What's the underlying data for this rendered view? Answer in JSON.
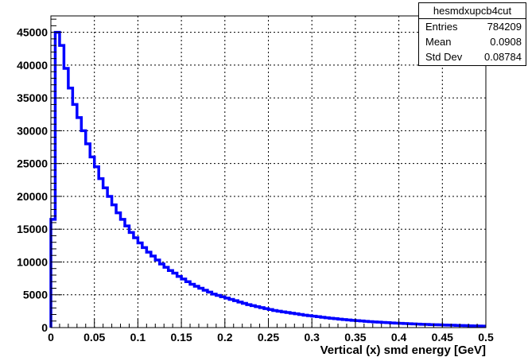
{
  "chart_data": {
    "type": "histogram",
    "xlabel": "Vertical (x) smd energy [GeV]",
    "ylabel": "",
    "xlim": [
      0,
      0.5
    ],
    "ylim": [
      0,
      47500
    ],
    "grid": true,
    "line_color": "#0000ff",
    "x_ticks": [
      "0",
      "0.05",
      "0.1",
      "0.15",
      "0.2",
      "0.25",
      "0.3",
      "0.35",
      "0.4",
      "0.45",
      "0.5"
    ],
    "y_ticks": [
      "0",
      "5000",
      "10000",
      "15000",
      "20000",
      "25000",
      "30000",
      "35000",
      "40000",
      "45000"
    ],
    "bin_width": 0.005,
    "x": [
      0.0025,
      0.0075,
      0.0125,
      0.0175,
      0.0225,
      0.0275,
      0.0325,
      0.0375,
      0.0425,
      0.0475,
      0.0525,
      0.0575,
      0.0625,
      0.0675,
      0.0725,
      0.0775,
      0.0825,
      0.0875,
      0.0925,
      0.0975,
      0.1025,
      0.1075,
      0.1125,
      0.1175,
      0.1225,
      0.1275,
      0.1325,
      0.1375,
      0.1425,
      0.1475,
      0.1525,
      0.1575,
      0.1625,
      0.1675,
      0.1725,
      0.1775,
      0.1825,
      0.1875,
      0.1925,
      0.1975,
      0.2025,
      0.2075,
      0.2125,
      0.2175,
      0.2225,
      0.2275,
      0.2325,
      0.2375,
      0.2425,
      0.2475,
      0.2525,
      0.2575,
      0.2625,
      0.2675,
      0.2725,
      0.2775,
      0.2825,
      0.2875,
      0.2925,
      0.2975,
      0.3025,
      0.3075,
      0.3125,
      0.3175,
      0.3225,
      0.3275,
      0.3325,
      0.3375,
      0.3425,
      0.3475,
      0.3525,
      0.3575,
      0.3625,
      0.3675,
      0.3725,
      0.3775,
      0.3825,
      0.3875,
      0.3925,
      0.3975,
      0.4025,
      0.4075,
      0.4125,
      0.4175,
      0.4225,
      0.4275,
      0.4325,
      0.4375,
      0.4425,
      0.4475,
      0.4525,
      0.4575,
      0.4625,
      0.4675,
      0.4725,
      0.4775,
      0.4825,
      0.4875,
      0.4925,
      0.4975
    ],
    "values": [
      16500,
      45000,
      43000,
      39500,
      36500,
      34000,
      32000,
      30000,
      28000,
      26000,
      24500,
      22700,
      21300,
      20000,
      18700,
      17500,
      16500,
      15500,
      14500,
      13700,
      12900,
      12200,
      11500,
      10900,
      10300,
      9700,
      9200,
      8700,
      8300,
      7800,
      7400,
      7000,
      6600,
      6300,
      6000,
      5700,
      5400,
      5100,
      4900,
      4700,
      4500,
      4300,
      4100,
      3900,
      3700,
      3500,
      3350,
      3200,
      3050,
      2900,
      2750,
      2600,
      2500,
      2400,
      2300,
      2200,
      2100,
      2000,
      1900,
      1820,
      1740,
      1660,
      1580,
      1500,
      1430,
      1360,
      1290,
      1230,
      1170,
      1110,
      1060,
      1010,
      960,
      910,
      870,
      830,
      790,
      750,
      710,
      680,
      650,
      620,
      590,
      560,
      530,
      500,
      480,
      460,
      440,
      420,
      400,
      380,
      360,
      340,
      320,
      300,
      280,
      260,
      240,
      220
    ]
  },
  "stats": {
    "title": "hesmdxupcb4cut",
    "rows": [
      {
        "label": "Entries",
        "value": "784209"
      },
      {
        "label": "Mean",
        "value": "0.0908"
      },
      {
        "label": "Std Dev",
        "value": "0.08784"
      }
    ]
  }
}
